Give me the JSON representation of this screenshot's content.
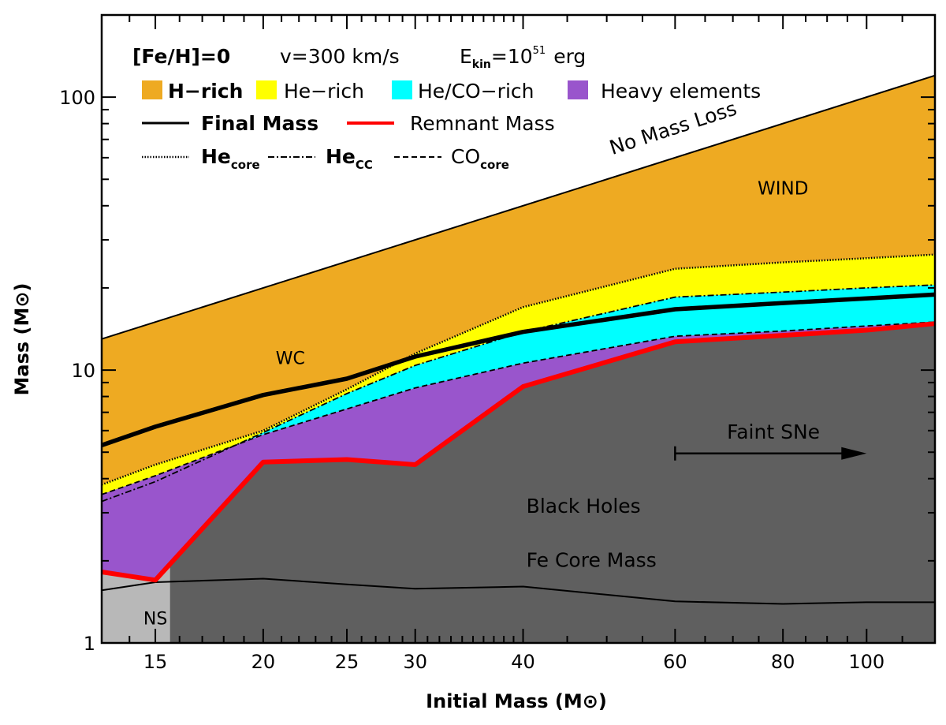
{
  "chart_data": {
    "type": "area",
    "title": "",
    "xlabel": "Initial Mass (M⊙)",
    "ylabel": "Mass (M⊙)",
    "x_scale": "log",
    "y_scale": "log",
    "xlim": [
      13,
      120
    ],
    "ylim": [
      1,
      200
    ],
    "x_ticks": [
      15,
      20,
      25,
      30,
      40,
      60,
      80,
      100
    ],
    "y_ticks": [
      1,
      10,
      100
    ],
    "conditions": {
      "feh": "[Fe/H]=0",
      "velocity": "v=300 km/s",
      "ekin_base": "E",
      "ekin_sub": "kin",
      "ekin_eq": "=10",
      "ekin_exp": "51",
      "ekin_unit": "erg"
    },
    "legend_regions": [
      {
        "label": "H−rich",
        "color": "#EEAA22"
      },
      {
        "label": "He−rich",
        "color": "#FFFF00"
      },
      {
        "label": "He/CO−rich",
        "color": "#00FFFF"
      },
      {
        "label": "Heavy elements",
        "color": "#9955CC"
      }
    ],
    "legend_lines": [
      {
        "label": "Final Mass",
        "color": "#000000",
        "style": "solid-thick"
      },
      {
        "label": "Remnant Mass",
        "color": "#FF0000",
        "style": "solid-thick"
      },
      {
        "label": "He",
        "sub": "core",
        "color": "#000000",
        "style": "dotted"
      },
      {
        "label": "He",
        "sub": "CC",
        "color": "#000000",
        "style": "dash-dot"
      },
      {
        "label": "CO",
        "sub": "core",
        "color": "#000000",
        "style": "dashed"
      }
    ],
    "region_colors": {
      "black_holes": "#5F5F5F",
      "neutron_stars": "#B8B8B8"
    },
    "series": [
      {
        "name": "No Mass Loss",
        "x": [
          13,
          120
        ],
        "y": [
          13,
          120
        ]
      },
      {
        "name": "He_core",
        "x": [
          13,
          15,
          20,
          25,
          30,
          40,
          60,
          80,
          100,
          120
        ],
        "y": [
          3.8,
          4.5,
          6.0,
          8.5,
          11.5,
          17.0,
          23.5,
          24.8,
          25.7,
          26.5
        ]
      },
      {
        "name": "He_CC",
        "x": [
          13,
          15,
          20,
          25,
          30,
          40,
          60,
          80,
          100,
          120
        ],
        "y": [
          3.3,
          3.9,
          5.9,
          8.2,
          10.4,
          13.8,
          18.5,
          19.3,
          20.0,
          20.5
        ]
      },
      {
        "name": "CO_core",
        "x": [
          13,
          15,
          20,
          25,
          30,
          40,
          60,
          80,
          100,
          120
        ],
        "y": [
          3.5,
          4.1,
          5.8,
          7.2,
          8.6,
          10.6,
          13.3,
          13.9,
          14.5,
          15.0
        ]
      },
      {
        "name": "Final Mass",
        "x": [
          13,
          15,
          20,
          25,
          30,
          40,
          60,
          80,
          100,
          120
        ],
        "y": [
          5.3,
          6.2,
          8.1,
          9.3,
          11.2,
          13.8,
          16.7,
          17.6,
          18.3,
          18.9
        ]
      },
      {
        "name": "Remnant Mass",
        "x": [
          13,
          15,
          20,
          25,
          30,
          40,
          60,
          80,
          100,
          120
        ],
        "y": [
          1.82,
          1.7,
          4.6,
          4.7,
          4.5,
          8.7,
          12.7,
          13.4,
          14.0,
          14.8
        ]
      },
      {
        "name": "Fe Core Mass",
        "x": [
          13,
          15,
          20,
          25,
          30,
          40,
          60,
          80,
          100,
          120
        ],
        "y": [
          1.56,
          1.67,
          1.72,
          1.64,
          1.58,
          1.61,
          1.42,
          1.39,
          1.41,
          1.41
        ]
      }
    ],
    "ns_bh_boundary_x": 15.6,
    "annotations": [
      {
        "text": "No Mass Loss",
        "x": 60,
        "y": 73,
        "angle": -18
      },
      {
        "text": "WIND",
        "x": 80,
        "y": 44
      },
      {
        "text": "WC",
        "x": 21.5,
        "y": 10.5
      },
      {
        "text": "Faint SNe",
        "x": 78,
        "y": 5.6
      },
      {
        "text": "Black Holes",
        "x": 47,
        "y": 3.0
      },
      {
        "text": "Fe Core Mass",
        "x": 48,
        "y": 1.9
      },
      {
        "text": "NS",
        "x": 15,
        "y": 1.17
      }
    ],
    "arrow": {
      "x_start": 60,
      "x_end": 100,
      "y": 4.95
    }
  }
}
